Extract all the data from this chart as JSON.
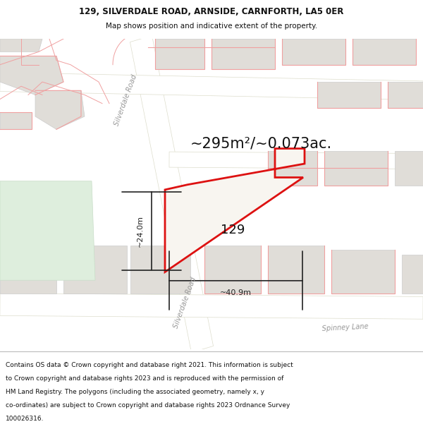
{
  "title_line1": "129, SILVERDALE ROAD, ARNSIDE, CARNFORTH, LA5 0ER",
  "title_line2": "Map shows position and indicative extent of the property.",
  "area_text": "~295m²/~0.073ac.",
  "label_129": "129",
  "dim_height": "~24.0m",
  "dim_width": "~40.9m",
  "road_label_top": "Silverdale Road",
  "road_label_bottom": "Silverdale Road",
  "spinney_label": "Spinney Lane",
  "footer_lines": [
    "Contains OS data © Crown copyright and database right 2021. This information is subject",
    "to Crown copyright and database rights 2023 and is reproduced with the permission of",
    "HM Land Registry. The polygons (including the associated geometry, namely x, y",
    "co-ordinates) are subject to Crown copyright and database rights 2023 Ordnance Survey",
    "100026316."
  ],
  "map_bg": "#f2f0eb",
  "road_fill": "#ffffff",
  "block_fill": "#e0ddd8",
  "block_ec": "#cccccc",
  "green_fill": "#deeedd",
  "pink_line": "#f0a0a0",
  "plot_red": "#dd1111",
  "dim_col": "#222222",
  "label_col": "#999999",
  "title_bg": "#ffffff",
  "footer_bg": "#ffffff",
  "title_fs": 8.5,
  "title2_fs": 7.5,
  "area_fs": 15,
  "num_fs": 13,
  "dim_fs": 8,
  "road_fs": 7,
  "footer_fs": 6.5
}
